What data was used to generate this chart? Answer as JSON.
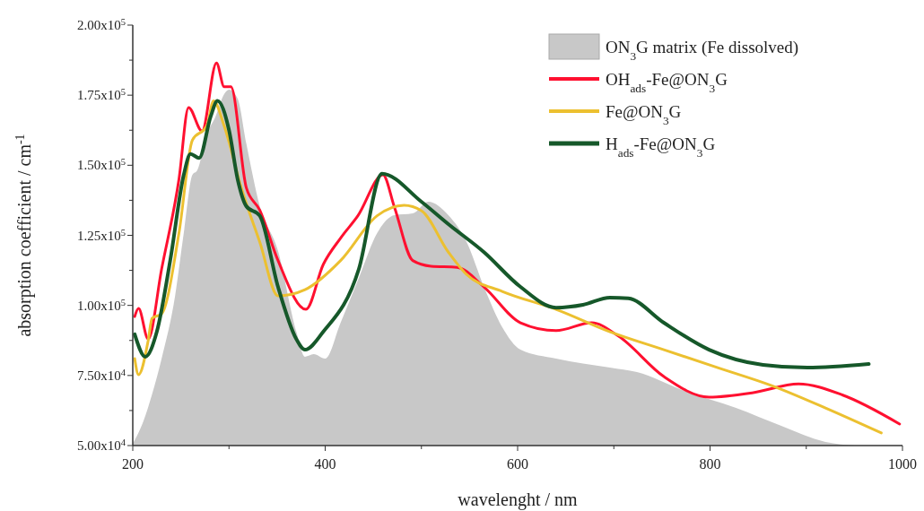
{
  "chart_data": {
    "type": "line",
    "xlabel": "wavelenght / nm",
    "ylabel": "absorption coefficient / cm$^{-1}$",
    "xlim": [
      200,
      1000
    ],
    "xticks": [
      200,
      {
        "value": 300,
        "label": null
      },
      400,
      {
        "value": 500,
        "label": null
      },
      600,
      {
        "value": 700,
        "label": null
      },
      800,
      {
        "value": 900,
        "label": null
      },
      1000
    ],
    "ylim": [
      50000,
      200000
    ],
    "yticks": [
      {
        "value": 50000,
        "label": "5.00x10$^{4}$"
      },
      {
        "value": 62500,
        "label": null
      },
      {
        "value": 75000,
        "label": "7.50x10$^{4}$"
      },
      {
        "value": 87500,
        "label": null
      },
      {
        "value": 100000,
        "label": "1.00x10$^{5}$"
      },
      {
        "value": 112500,
        "label": null
      },
      {
        "value": 125000,
        "label": "1.25x10$^{5}$"
      },
      {
        "value": 137500,
        "label": null
      },
      {
        "value": 150000,
        "label": "1.50x10$^{5}$"
      },
      {
        "value": 162500,
        "label": null
      },
      {
        "value": 175000,
        "label": "1.75x10$^{5}$"
      },
      {
        "value": 187500,
        "label": null
      },
      {
        "value": 200000,
        "label": "2.00x10$^{5}$"
      }
    ],
    "grid": false,
    "legend": "top right",
    "line_style": "solid",
    "marker": "none",
    "series": [
      {
        "name": "ON$_{3}$G matrix (Fe dissolved)",
        "type": "area",
        "color": "#c8c8c8",
        "x": [
          200,
          211,
          220,
          230,
          244,
          253,
          262,
          267,
          277,
          286,
          295,
          300,
          309,
          318,
          332,
          351,
          370,
          379,
          388,
          400,
          416,
          435,
          454,
          472,
          491,
          507,
          528,
          547,
          565,
          584,
          603,
          640,
          696,
          724,
          771,
          827,
          874,
          920,
          952
        ],
        "values": [
          50600,
          58600,
          68200,
          81000,
          103400,
          125800,
          146600,
          148200,
          161000,
          167400,
          175400,
          177000,
          173800,
          157800,
          135400,
          119400,
          90600,
          81700,
          82600,
          81000,
          93800,
          109800,
          125800,
          132200,
          132800,
          137000,
          132200,
          122600,
          106600,
          92200,
          84200,
          81000,
          77800,
          76200,
          69800,
          63400,
          57000,
          51300,
          50000
        ]
      },
      {
        "name": "OH$_{ads}$-Fe@ON$_{3}$G",
        "color": "#ff1030",
        "x": [
          202,
          206,
          216,
          230,
          248,
          258,
          272,
          287,
          295,
          302,
          318,
          332,
          351,
          380,
          398,
          416,
          434,
          460,
          472,
          491,
          510,
          537,
          565,
          603,
          640,
          677,
          705,
          752,
          799,
          845,
          892,
          938,
          997
        ],
        "values": [
          96000,
          98900,
          88000,
          113000,
          145000,
          170600,
          162200,
          186500,
          178000,
          178000,
          142000,
          134000,
          116000,
          98600,
          114600,
          124000,
          132000,
          146600,
          135000,
          116000,
          114000,
          113600,
          106600,
          93800,
          91000,
          93800,
          89000,
          74600,
          67300,
          68900,
          72000,
          68000,
          57700
        ]
      },
      {
        "name": "Fe@ON$_{3}$G",
        "color": "#ecc030",
        "x": [
          202,
          206,
          216,
          220,
          230,
          248,
          262,
          277,
          284,
          295,
          313,
          332,
          351,
          379,
          416,
          454,
          482,
          500,
          528,
          547,
          584,
          640,
          696,
          752,
          808,
          864,
          920,
          978
        ],
        "values": [
          81000,
          75300,
          87400,
          95400,
          97000,
          125800,
          159000,
          164000,
          173000,
          164000,
          141700,
          122600,
          103400,
          105600,
          116000,
          132000,
          135700,
          133800,
          119000,
          111000,
          105000,
          98600,
          90600,
          84200,
          77800,
          71400,
          63400,
          54500
        ]
      },
      {
        "name": "H$_{ads}$-Fe@ON$_{3}$G",
        "color": "#16582a",
        "x": [
          202,
          213,
          225,
          239,
          253,
          260,
          269,
          281,
          288,
          300,
          309,
          318,
          332,
          351,
          370,
          379,
          398,
          435,
          459,
          500,
          528,
          565,
          603,
          640,
          668,
          696,
          715,
          752,
          799,
          855,
          901,
          965
        ],
        "values": [
          89700,
          81700,
          90600,
          116200,
          146600,
          154000,
          152600,
          167400,
          173000,
          162600,
          145000,
          135400,
          132000,
          106600,
          88000,
          84200,
          90600,
          113000,
          147000,
          137000,
          129000,
          119000,
          106600,
          99200,
          100200,
          102800,
          102500,
          93800,
          84200,
          78800,
          77800,
          79100
        ]
      }
    ]
  }
}
